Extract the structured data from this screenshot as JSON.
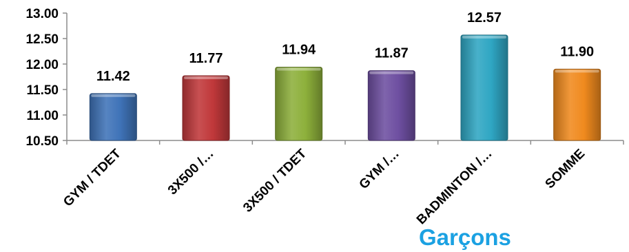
{
  "chart_data": {
    "type": "bar",
    "title": "Garçons",
    "xlabel": "",
    "ylabel": "",
    "ylim": [
      10.5,
      13.0
    ],
    "yticks": [
      10.5,
      11.0,
      11.5,
      12.0,
      12.5,
      13.0
    ],
    "ytick_labels": [
      "10.50",
      "11.00",
      "11.50",
      "12.00",
      "12.50",
      "13.00"
    ],
    "grid": false,
    "legend": "none",
    "categories": [
      "GYM / TDET",
      "3X500 /…",
      "3X500 / TDET",
      "GYM /…",
      "BADMINTON /…",
      "SOMME"
    ],
    "values": [
      11.42,
      11.77,
      11.94,
      11.87,
      12.57,
      11.9
    ],
    "value_labels": [
      "11.42",
      "11.77",
      "11.94",
      "11.87",
      "12.57",
      "11.90"
    ],
    "colors": [
      "#3f73b8",
      "#c0383a",
      "#8db03b",
      "#6e4fa1",
      "#2fa6c3",
      "#f08a1e"
    ]
  }
}
